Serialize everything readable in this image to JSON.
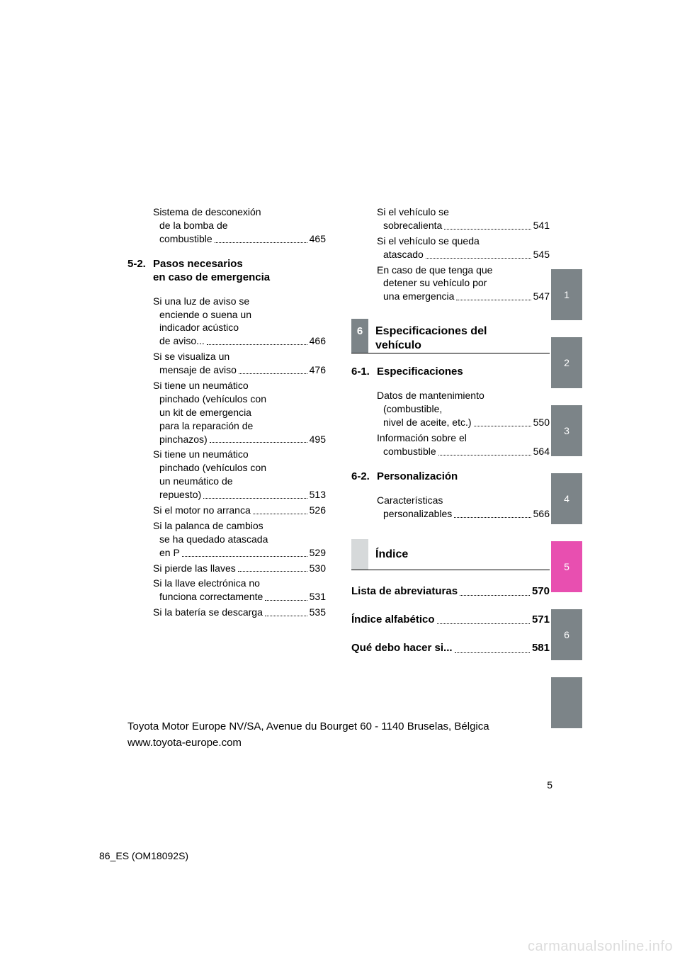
{
  "left_column": {
    "pre_entries": [
      {
        "lines": [
          "Sistema de desconexión",
          "de la bomba de",
          "combustible"
        ],
        "page": "465"
      }
    ],
    "section": {
      "num": "5-2.",
      "title_lines": [
        "Pasos necesarios",
        "en caso de emergencia"
      ]
    },
    "entries": [
      {
        "lines": [
          "Si una luz de aviso se",
          "enciende o suena un",
          " indicador acústico",
          "de aviso..."
        ],
        "page": "466"
      },
      {
        "lines": [
          "Si se visualiza un",
          "mensaje de aviso"
        ],
        "page": "476"
      },
      {
        "lines": [
          "Si tiene un neumático",
          "pinchado (vehículos con",
          "un kit de emergencia",
          "para la reparación de",
          "pinchazos)"
        ],
        "page": "495"
      },
      {
        "lines": [
          "Si tiene un neumático",
          "pinchado (vehículos con",
          "un neumático de",
          "repuesto)"
        ],
        "page": "513"
      },
      {
        "lines": [
          "Si el motor no arranca"
        ],
        "page": "526"
      },
      {
        "lines": [
          "Si la palanca de cambios",
          "se ha quedado atascada",
          "en P"
        ],
        "page": "529"
      },
      {
        "lines": [
          "Si pierde las llaves"
        ],
        "page": "530"
      },
      {
        "lines": [
          "Si la llave electrónica no",
          "funciona correctamente"
        ],
        "page": "531"
      },
      {
        "lines": [
          "Si la batería se descarga"
        ],
        "page": "535"
      }
    ]
  },
  "right_column": {
    "top_entries": [
      {
        "lines": [
          "Si el vehículo se",
          "sobrecalienta"
        ],
        "page": "541"
      },
      {
        "lines": [
          "Si el vehículo se queda",
          "atascado"
        ],
        "page": "545"
      },
      {
        "lines": [
          "En caso de que tenga que",
          "detener su vehículo por",
          "una emergencia"
        ],
        "page": "547"
      }
    ],
    "chapter6": {
      "num": "6",
      "title_lines": [
        "Especificaciones del",
        "vehículo"
      ]
    },
    "section61": {
      "num": "6-1.",
      "title": "Especificaciones"
    },
    "entries61": [
      {
        "lines": [
          "Datos de mantenimiento",
          "(combustible,",
          "nivel de aceite, etc.)"
        ],
        "page": "550"
      },
      {
        "lines": [
          "Información sobre el",
          "combustible"
        ],
        "page": "564"
      }
    ],
    "section62": {
      "num": "6-2.",
      "title": "Personalización"
    },
    "entries62": [
      {
        "lines": [
          "Características",
          "personalizables"
        ],
        "page": "566"
      }
    ],
    "index_title": "Índice",
    "bold_entries": [
      {
        "text": "Lista de abreviaturas",
        "page": "570"
      },
      {
        "text": "Índice alfabético",
        "page": "571"
      },
      {
        "text": "Qué debo hacer si...",
        "page": "581"
      }
    ]
  },
  "side_tabs": [
    {
      "label": "1",
      "bg": "#7c8488"
    },
    {
      "label": "2",
      "bg": "#7c8488"
    },
    {
      "label": "3",
      "bg": "#7c8488"
    },
    {
      "label": "4",
      "bg": "#7c8488"
    },
    {
      "label": "5",
      "bg": "#e84fb0"
    },
    {
      "label": "6",
      "bg": "#7c8488"
    },
    {
      "label": "",
      "bg": "#7c8488"
    }
  ],
  "footer": "Toyota Motor Europe NV/SA, Avenue du Bourget 60 - 1140 Bruselas, Bélgica www.toyota-europe.com",
  "page_number": "5",
  "doc_code": "86_ES (OM18092S)",
  "watermark": "carmanualsonline.info"
}
